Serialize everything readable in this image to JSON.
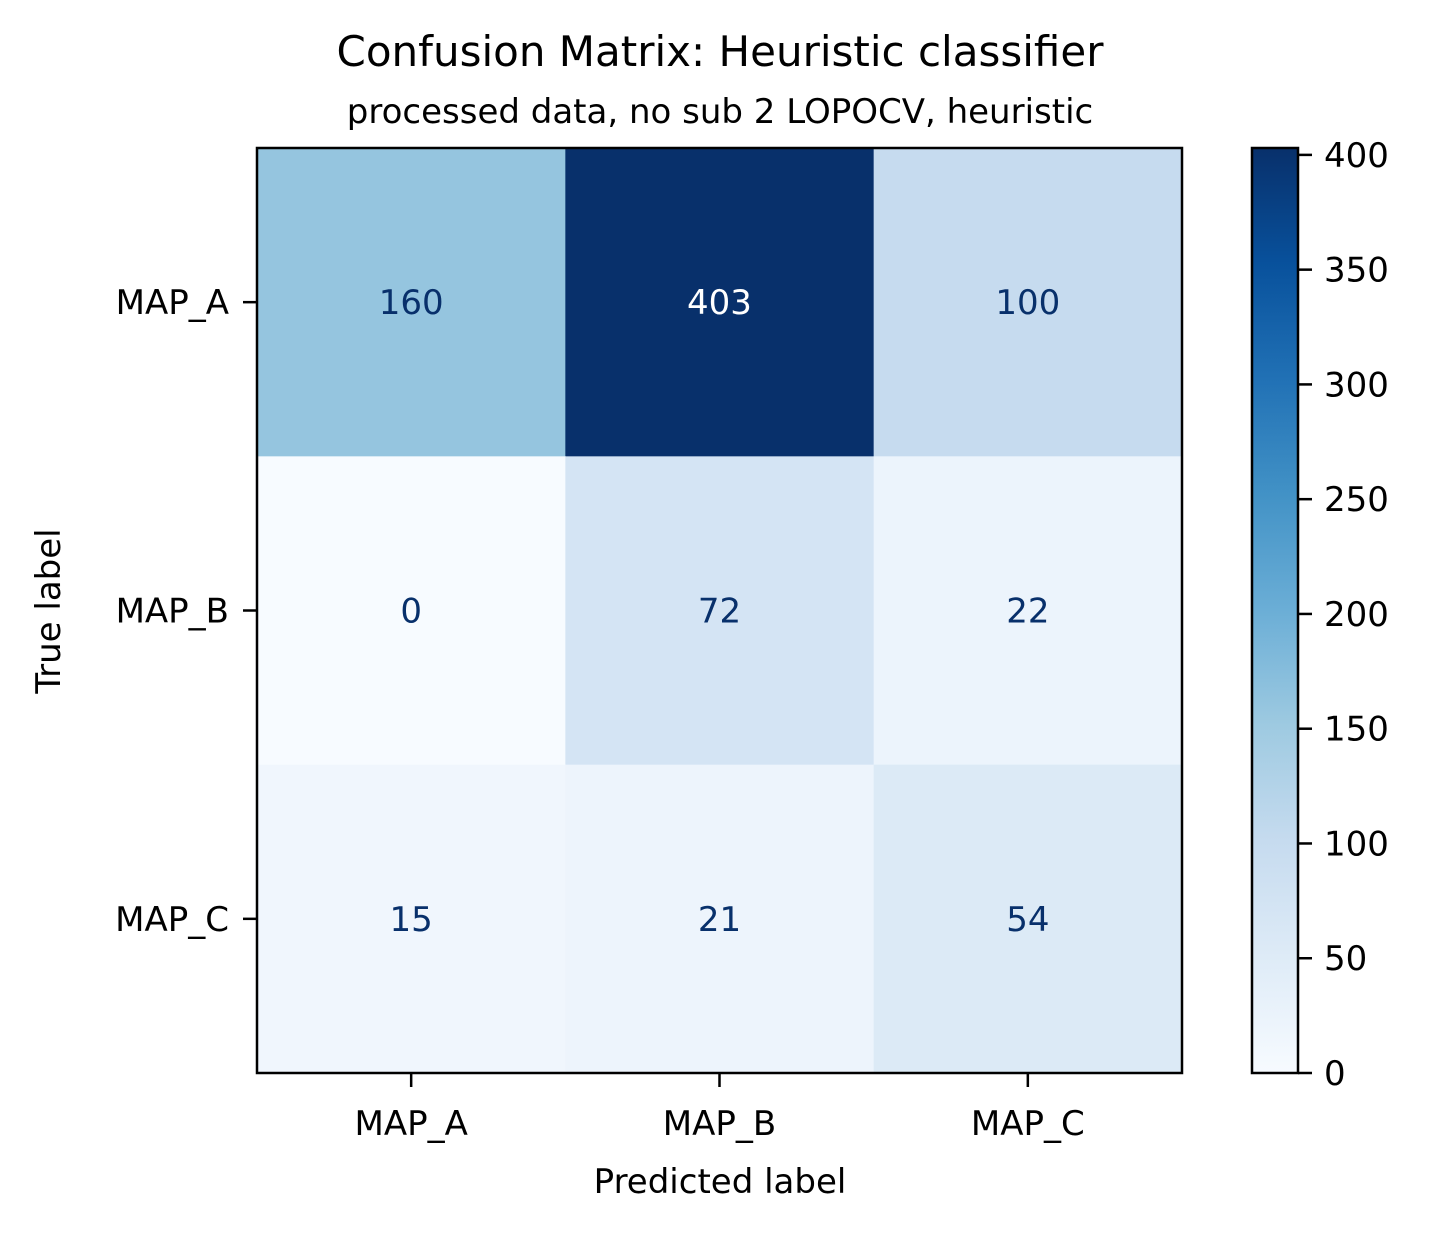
{
  "chart_data": {
    "type": "heatmap",
    "title": "Confusion Matrix: Heuristic classifier",
    "subtitle": "processed data, no sub 2 LOPOCV, heuristic",
    "xlabel": "Predicted label",
    "ylabel": "True label",
    "x_categories": [
      "MAP_A",
      "MAP_B",
      "MAP_C"
    ],
    "y_categories": [
      "MAP_A",
      "MAP_B",
      "MAP_C"
    ],
    "values": [
      [
        160,
        403,
        100
      ],
      [
        0,
        72,
        22
      ],
      [
        15,
        21,
        54
      ]
    ],
    "colormap": "Blues",
    "colorbar": {
      "range": [
        0,
        403
      ],
      "ticks": [
        0,
        50,
        100,
        150,
        200,
        250,
        300,
        350,
        400
      ]
    },
    "grid": false
  }
}
